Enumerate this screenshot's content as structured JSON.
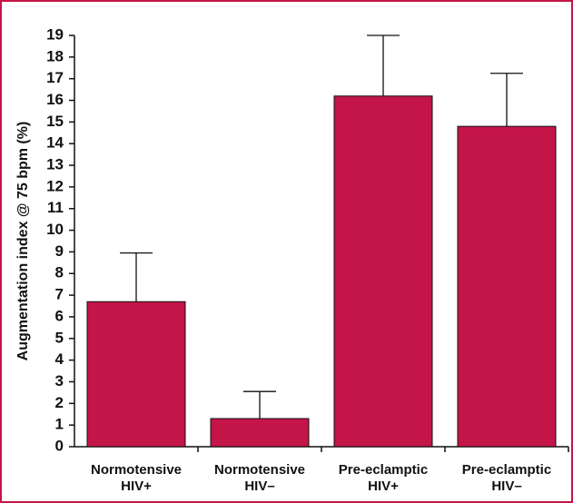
{
  "chart_data": {
    "type": "bar",
    "ylabel": "Augmentation index @ 75 bpm (%)",
    "xlabel": "",
    "title": "",
    "ylim": [
      0,
      19
    ],
    "yticks": [
      0,
      1,
      2,
      3,
      4,
      5,
      6,
      7,
      8,
      9,
      10,
      11,
      12,
      13,
      14,
      15,
      16,
      17,
      18,
      19
    ],
    "categories": [
      [
        "Normotensive",
        "HIV+"
      ],
      [
        "Normotensive",
        "HIV–"
      ],
      [
        "Pre-eclamptic",
        "HIV+"
      ],
      [
        "Pre-eclamptic",
        "HIV–"
      ]
    ],
    "values": [
      6.7,
      1.3,
      16.2,
      14.8
    ],
    "error_upper": [
      8.95,
      2.55,
      19.0,
      17.25
    ],
    "grid": false,
    "legend": "none",
    "colors": {
      "bar": "#c41548",
      "border": "#c41548",
      "axis": "#111111"
    }
  }
}
